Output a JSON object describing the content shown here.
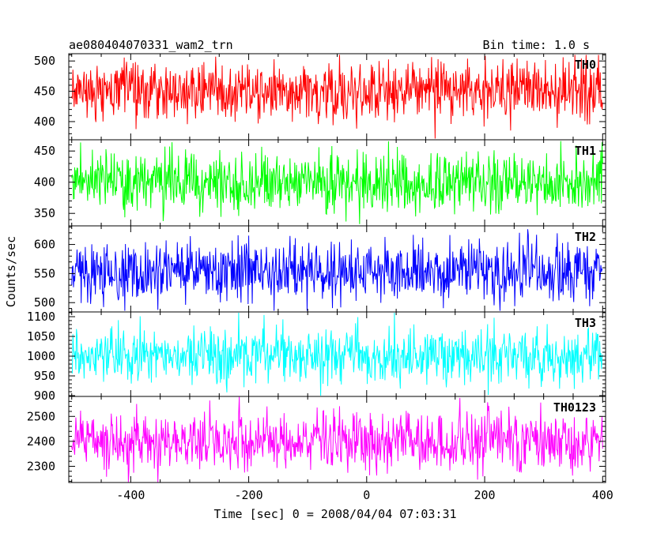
{
  "header": {
    "title": "ae080404070331_wam2_trn",
    "bin_time": "Bin time: 1.0 s"
  },
  "axes": {
    "xlabel": "Time [sec] 0 = 2008/04/04 07:03:31",
    "ylabel": "Counts/sec"
  },
  "chart_data": {
    "type": "line",
    "title": "ae080404070331_wam2_trn",
    "subtitle": "Bin time: 1.0 s",
    "xlabel": "Time [sec] 0 = 2008/04/04 07:03:31",
    "ylabel": "Counts/sec",
    "xlim": [
      -505,
      405
    ],
    "x_ticks": [
      -400,
      -200,
      0,
      200,
      400
    ],
    "x_range": [
      -500,
      400
    ],
    "bin_seconds": 1.0,
    "grid": false,
    "legend": "none",
    "panels": [
      {
        "name": "TH0",
        "color": "#ff0000",
        "ylim": [
          370,
          512
        ],
        "yticks": [
          400,
          450,
          500
        ],
        "mean": 450,
        "spread": 26,
        "clip_min": 372,
        "clip_max": 510
      },
      {
        "name": "TH1",
        "color": "#00ff00",
        "ylim": [
          330,
          468
        ],
        "yticks": [
          350,
          400,
          450
        ],
        "mean": 400,
        "spread": 24,
        "clip_min": 332,
        "clip_max": 466
      },
      {
        "name": "TH2",
        "color": "#0000ff",
        "ylim": [
          484,
          632
        ],
        "yticks": [
          500,
          550,
          600
        ],
        "mean": 555,
        "spread": 26,
        "clip_min": 486,
        "clip_max": 630
      },
      {
        "name": "TH3",
        "color": "#00ffff",
        "ylim": [
          898,
          1112
        ],
        "yticks": [
          900,
          950,
          1000,
          1050,
          1100
        ],
        "mean": 1000,
        "spread": 36,
        "clip_min": 900,
        "clip_max": 1110
      },
      {
        "name": "TH0123",
        "color": "#ff00ff",
        "ylim": [
          2235,
          2580
        ],
        "yticks": [
          2300,
          2400,
          2500
        ],
        "mean": 2400,
        "spread": 58,
        "clip_min": 2237,
        "clip_max": 2578
      }
    ]
  }
}
